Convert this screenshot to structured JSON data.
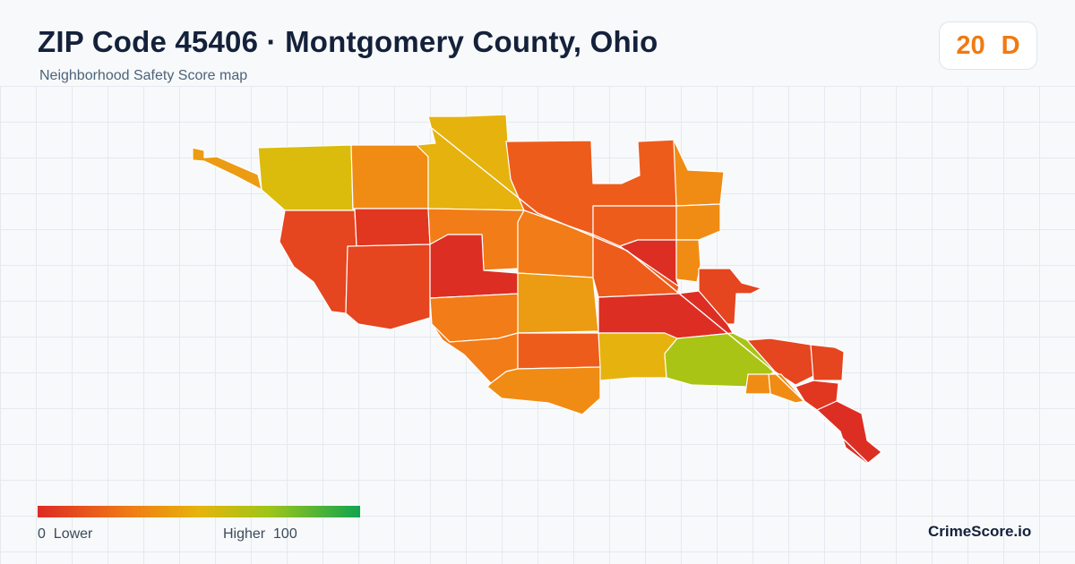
{
  "header": {
    "title": "ZIP Code 45406 · Montgomery County, Ohio",
    "subtitle": "Neighborhood Safety Score map"
  },
  "score": {
    "value": "20",
    "grade": "D",
    "color": "#f07a12"
  },
  "map": {
    "fill_colors": {
      "red": "#dd2e24",
      "red_orange": "#e5451f",
      "dark_orange": "#ee5c1c",
      "orange": "#f27c17",
      "light_orange": "#f08c14",
      "amber": "#ec9c12",
      "gold": "#e6b20e",
      "yellow": "#dbbc0c",
      "yellow_green": "#a9c414"
    },
    "border_color": "#ffffff"
  },
  "legend": {
    "low_label": "0  Lower",
    "high_label": "Higher  100",
    "gradient": [
      "#dd2b25",
      "#ef7a16",
      "#e6b40c",
      "#9dc51a",
      "#10a44f"
    ]
  },
  "brand": "CrimeScore.io"
}
